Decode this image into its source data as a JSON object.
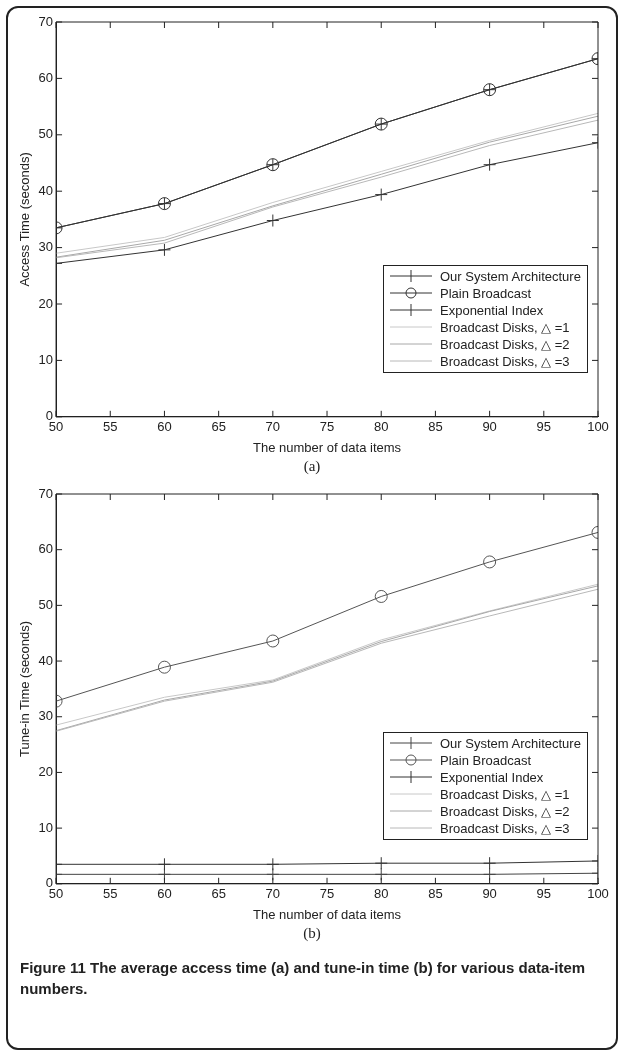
{
  "chart_data": [
    {
      "type": "line",
      "xlabel": "The number of data items",
      "ylabel": "Access Time (seconds)",
      "x": [
        50,
        60,
        70,
        80,
        90,
        100
      ],
      "xlim": [
        50,
        100
      ],
      "xticks": [
        50,
        55,
        60,
        65,
        70,
        75,
        80,
        85,
        90,
        95,
        100
      ],
      "ylim": [
        0,
        70
      ],
      "yticks": [
        0,
        10,
        20,
        30,
        40,
        50,
        60,
        70
      ],
      "grid": false,
      "legend": "bottom right",
      "annotations": [
        "(a)"
      ],
      "series": [
        {
          "name": "Our System Architecture",
          "color": "#333333",
          "marker": "cross",
          "values": [
            27.2,
            29.6,
            34.8,
            39.4,
            44.7,
            48.6
          ]
        },
        {
          "name": "Plain Broadcast",
          "color": "#333333",
          "marker": "circle",
          "values": [
            33.5,
            37.8,
            44.7,
            51.9,
            58.0,
            63.5
          ]
        },
        {
          "name": "Exponential Index",
          "color": "#333333",
          "marker": "cross",
          "values": [
            33.5,
            37.8,
            44.7,
            51.9,
            58.0,
            63.5
          ]
        },
        {
          "name": "Broadcast Disks, △ =1",
          "color": "#c8c8c8",
          "marker": "none",
          "values": [
            29.0,
            31.8,
            38.0,
            43.5,
            49.0,
            53.8
          ]
        },
        {
          "name": "Broadcast Disks, △ =2",
          "color": "#a8a8a8",
          "marker": "none",
          "values": [
            28.3,
            31.3,
            37.4,
            43.0,
            48.7,
            53.3
          ]
        },
        {
          "name": "Broadcast Disks, △ =3",
          "color": "#b8b8b8",
          "marker": "none",
          "values": [
            28.2,
            30.8,
            37.2,
            42.5,
            48.1,
            52.6
          ]
        }
      ]
    },
    {
      "type": "line",
      "xlabel": "The number of data items",
      "ylabel": "Tune-in Time (seconds)",
      "x": [
        50,
        60,
        70,
        80,
        90,
        100
      ],
      "xlim": [
        50,
        100
      ],
      "xticks": [
        50,
        55,
        60,
        65,
        70,
        75,
        80,
        85,
        90,
        95,
        100
      ],
      "ylim": [
        0,
        70
      ],
      "yticks": [
        0,
        10,
        20,
        30,
        40,
        50,
        60,
        70
      ],
      "grid": false,
      "legend": "bottom right",
      "annotations": [
        "(b)",
        "Figure 11 The average access time (a) and tune-in time (b) for various data-item numbers."
      ],
      "series": [
        {
          "name": "Our System Architecture",
          "color": "#444444",
          "marker": "cross",
          "values": [
            1.7,
            1.7,
            1.7,
            1.7,
            1.7,
            1.9
          ]
        },
        {
          "name": "Plain Broadcast",
          "color": "#555555",
          "marker": "circle",
          "values": [
            32.8,
            38.9,
            43.6,
            51.6,
            57.8,
            63.1
          ]
        },
        {
          "name": "Exponential Index",
          "color": "#333333",
          "marker": "cross",
          "values": [
            3.5,
            3.5,
            3.5,
            3.7,
            3.7,
            4.1
          ]
        },
        {
          "name": "Broadcast Disks, △ =1",
          "color": "#c8c8c8",
          "marker": "none",
          "values": [
            28.5,
            33.5,
            36.6,
            43.8,
            49.0,
            53.8
          ]
        },
        {
          "name": "Broadcast Disks, △ =2",
          "color": "#a8a8a8",
          "marker": "none",
          "values": [
            27.5,
            33.0,
            36.4,
            43.5,
            48.9,
            53.5
          ]
        },
        {
          "name": "Broadcast Disks, △ =3",
          "color": "#b8b8b8",
          "marker": "none",
          "values": [
            27.4,
            32.8,
            36.2,
            43.2,
            48.1,
            52.9
          ]
        }
      ]
    }
  ]
}
